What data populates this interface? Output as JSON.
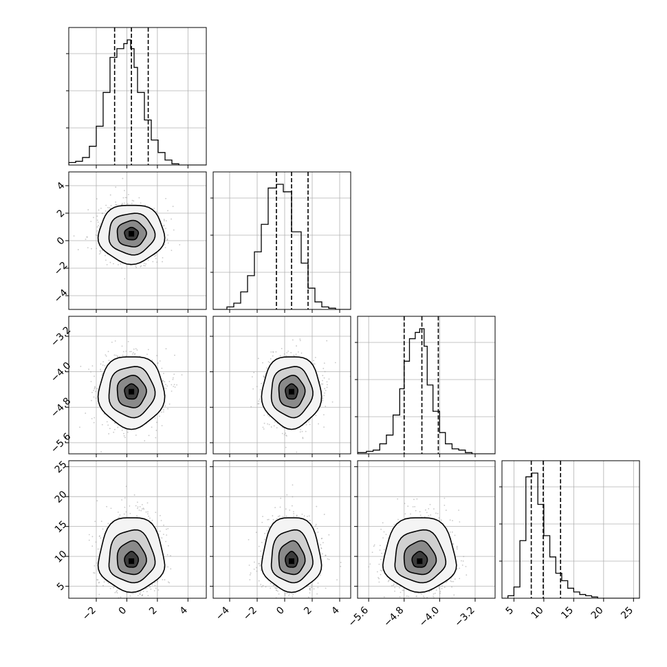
{
  "chart_data": {
    "type": "corner",
    "grid": true,
    "params": [
      {
        "xlim": [
          -3.8,
          5.2
        ],
        "ticks": [
          -2,
          0,
          2,
          4
        ],
        "tick_labels": [
          "−2",
          "0",
          "2",
          "4"
        ],
        "quantiles": [
          -0.8,
          0.3,
          1.4
        ],
        "hist_edges": [
          -3.8,
          -3.35,
          -2.9,
          -2.45,
          -2.0,
          -1.55,
          -1.1,
          -0.65,
          -0.2,
          0.025,
          0.25,
          0.475,
          0.7,
          1.15,
          1.6,
          2.05,
          2.5,
          2.95,
          3.4,
          3.85,
          4.3,
          4.75,
          5.2
        ],
        "hist_counts": [
          0.02,
          0.03,
          0.06,
          0.15,
          0.31,
          0.58,
          0.86,
          0.93,
          0.97,
          1.0,
          0.93,
          0.78,
          0.58,
          0.36,
          0.2,
          0.1,
          0.04,
          0.01,
          0.0,
          0.0,
          0.0,
          0.0
        ],
        "center": 0.3,
        "sigma": 1.0
      },
      {
        "xlim": [
          -5.2,
          4.8
        ],
        "ticks": [
          -4,
          -2,
          0,
          2,
          4
        ],
        "tick_labels": [
          "−4",
          "−2",
          "0",
          "2",
          "4"
        ],
        "ylim": [
          -5.0,
          5.0
        ],
        "yticks": [
          -4,
          -2,
          0,
          2,
          4
        ],
        "ytick_labels": [
          "−4",
          "−2",
          "0",
          "2",
          "4"
        ],
        "quantiles": [
          -0.6,
          0.5,
          1.7
        ],
        "hist_edges": [
          -5.2,
          -4.2,
          -3.7,
          -3.2,
          -2.7,
          -2.2,
          -1.7,
          -1.2,
          -0.6,
          -0.1,
          0.5,
          1.2,
          1.7,
          2.2,
          2.7,
          3.2,
          3.7,
          4.8
        ],
        "hist_counts": [
          0.0,
          0.02,
          0.05,
          0.14,
          0.27,
          0.46,
          0.68,
          0.97,
          1.0,
          0.94,
          0.62,
          0.37,
          0.17,
          0.06,
          0.02,
          0.01,
          0.0
        ],
        "center": 0.5,
        "sigma": 1.0
      },
      {
        "xlim": [
          -5.85,
          -2.75
        ],
        "ticks": [
          -5.6,
          -4.8,
          -4.0,
          -3.2
        ],
        "tick_labels": [
          "−5.6",
          "−4.8",
          "−4.0",
          "−3.2"
        ],
        "ylim": [
          -5.85,
          -2.75
        ],
        "yticks": [
          -5.6,
          -4.8,
          -4.0,
          -3.2
        ],
        "ytick_labels": [
          "−5.6",
          "−4.8",
          "−4.0",
          "−3.2"
        ],
        "quantiles": [
          -4.8,
          -4.4,
          -4.03
        ],
        "hist_edges": [
          -5.85,
          -5.65,
          -5.5,
          -5.35,
          -5.2,
          -5.05,
          -4.9,
          -4.8,
          -4.68,
          -4.55,
          -4.45,
          -4.35,
          -4.28,
          -4.15,
          -4.0,
          -3.87,
          -3.72,
          -3.57,
          -3.42,
          -3.27,
          -3.12,
          -2.75
        ],
        "hist_counts": [
          0.01,
          0.02,
          0.03,
          0.08,
          0.15,
          0.31,
          0.52,
          0.74,
          0.92,
          0.97,
          1.0,
          0.86,
          0.55,
          0.34,
          0.17,
          0.08,
          0.04,
          0.03,
          0.01,
          0.0,
          0.0
        ],
        "center": -4.45,
        "sigma": 0.38
      },
      {
        "xlim": [
          3.0,
          26.0
        ],
        "ticks": [
          5,
          10,
          15,
          20,
          25
        ],
        "tick_labels": [
          "5",
          "10",
          "15",
          "20",
          "25"
        ],
        "ylim": [
          3.0,
          26.0
        ],
        "yticks": [
          5,
          10,
          15,
          20,
          25
        ],
        "ytick_labels": [
          "5",
          "10",
          "15",
          "20",
          "25"
        ],
        "quantiles": [
          7.9,
          9.9,
          12.8
        ],
        "hist_edges": [
          3.0,
          4.0,
          5.0,
          6.0,
          7.0,
          8.0,
          9.0,
          10.0,
          11.0,
          12.0,
          13.0,
          14.0,
          15.0,
          16.0,
          17.0,
          18.0,
          19.0,
          20.0,
          21.0,
          22.0,
          23.0,
          24.0,
          26.0
        ],
        "hist_counts": [
          0.0,
          0.02,
          0.09,
          0.46,
          0.97,
          1.0,
          0.75,
          0.5,
          0.33,
          0.2,
          0.14,
          0.08,
          0.05,
          0.03,
          0.02,
          0.01,
          0.0,
          0.0,
          0.0,
          0.0,
          0.0,
          0.0
        ],
        "center": 9.2,
        "sigma": 2.6
      }
    ]
  }
}
